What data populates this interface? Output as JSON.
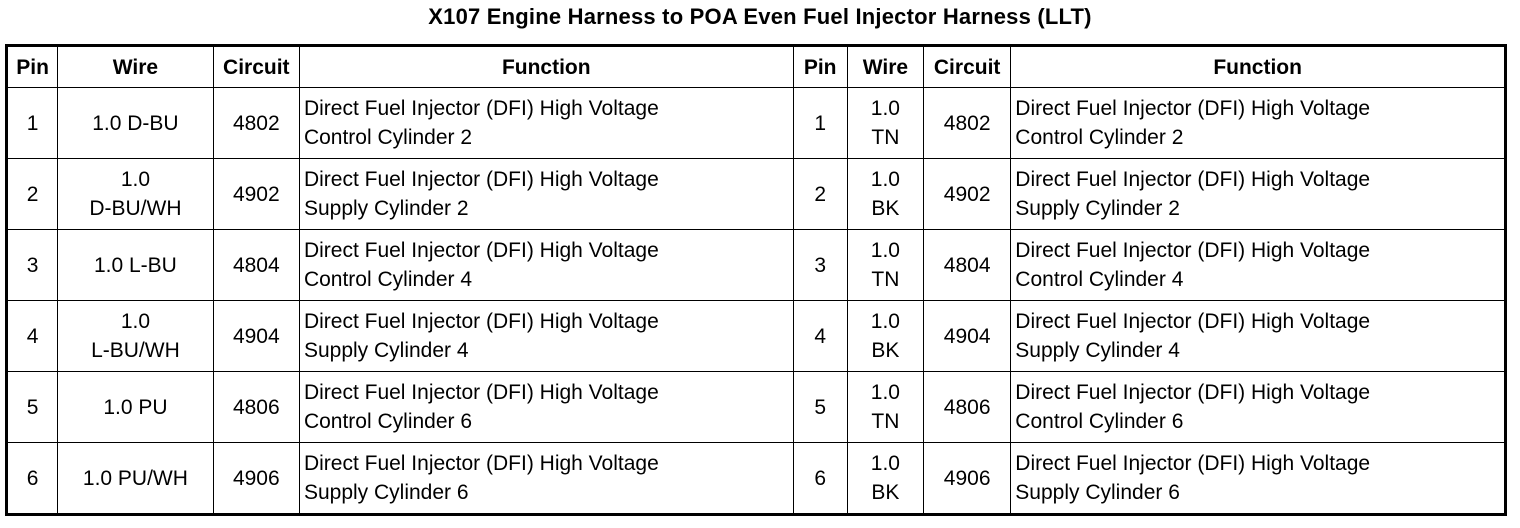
{
  "title": "X107 Engine Harness to POA Even Fuel Injector Harness (LLT)",
  "headers": {
    "left": {
      "pin": "Pin",
      "wire": "Wire",
      "circuit": "Circuit",
      "function": "Function"
    },
    "right": {
      "pin": "Pin",
      "wire": "Wire",
      "circuit": "Circuit",
      "function": "Function"
    }
  },
  "rows": [
    {
      "left": {
        "pin": "1",
        "wire": [
          "1.0 D-BU"
        ],
        "circuit": "4802",
        "function": [
          "Direct Fuel Injector (DFI) High Voltage",
          "Control Cylinder 2"
        ]
      },
      "right": {
        "pin": "1",
        "wire": [
          "1.0",
          "TN"
        ],
        "circuit": "4802",
        "function": [
          "Direct Fuel Injector (DFI) High Voltage",
          "Control Cylinder 2"
        ]
      }
    },
    {
      "left": {
        "pin": "2",
        "wire": [
          "1.0",
          "D-BU/WH"
        ],
        "circuit": "4902",
        "function": [
          "Direct Fuel Injector (DFI) High Voltage",
          "Supply Cylinder 2"
        ]
      },
      "right": {
        "pin": "2",
        "wire": [
          "1.0",
          "BK"
        ],
        "circuit": "4902",
        "function": [
          "Direct Fuel Injector (DFI) High Voltage",
          "Supply Cylinder 2"
        ]
      }
    },
    {
      "left": {
        "pin": "3",
        "wire": [
          "1.0 L-BU"
        ],
        "circuit": "4804",
        "function": [
          "Direct Fuel Injector (DFI) High Voltage",
          "Control Cylinder 4"
        ]
      },
      "right": {
        "pin": "3",
        "wire": [
          "1.0",
          "TN"
        ],
        "circuit": "4804",
        "function": [
          "Direct Fuel Injector (DFI) High Voltage",
          "Control Cylinder 4"
        ]
      }
    },
    {
      "left": {
        "pin": "4",
        "wire": [
          "1.0",
          "L-BU/WH"
        ],
        "circuit": "4904",
        "function": [
          "Direct Fuel Injector (DFI) High Voltage",
          "Supply Cylinder 4"
        ]
      },
      "right": {
        "pin": "4",
        "wire": [
          "1.0",
          "BK"
        ],
        "circuit": "4904",
        "function": [
          "Direct Fuel Injector (DFI) High Voltage",
          "Supply Cylinder 4"
        ]
      }
    },
    {
      "left": {
        "pin": "5",
        "wire": [
          "1.0 PU"
        ],
        "circuit": "4806",
        "function": [
          "Direct Fuel Injector (DFI) High Voltage",
          "Control Cylinder 6"
        ]
      },
      "right": {
        "pin": "5",
        "wire": [
          "1.0",
          "TN"
        ],
        "circuit": "4806",
        "function": [
          "Direct Fuel Injector (DFI) High Voltage",
          "Control Cylinder 6"
        ]
      }
    },
    {
      "left": {
        "pin": "6",
        "wire": [
          "1.0 PU/WH"
        ],
        "circuit": "4906",
        "function": [
          "Direct Fuel Injector (DFI) High Voltage",
          "Supply Cylinder 6"
        ]
      },
      "right": {
        "pin": "6",
        "wire": [
          "1.0",
          "BK"
        ],
        "circuit": "4906",
        "function": [
          "Direct Fuel Injector (DFI) High Voltage",
          "Supply Cylinder 6"
        ]
      }
    }
  ]
}
